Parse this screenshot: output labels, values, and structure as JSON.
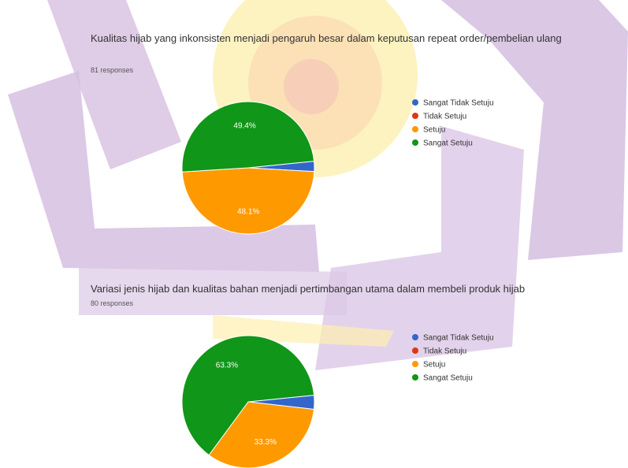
{
  "chart_data": [
    {
      "type": "pie",
      "title": "Kualitas hijab yang inkonsisten menjadi pengaruh besar dalam keputusan repeat order/pembelian ulang",
      "subtitle": "81 responses",
      "categories": [
        "Sangat Tidak Setuju",
        "Tidak Setuju",
        "Setuju",
        "Sangat Setuju"
      ],
      "values": [
        2.5,
        0,
        48.1,
        49.4
      ],
      "value_labels": [
        null,
        null,
        "48.1%",
        "49.4%"
      ],
      "colors": [
        "#3366cc",
        "#dc3912",
        "#ff9900",
        "#109618"
      ],
      "legend": "right"
    },
    {
      "type": "pie",
      "title": "Variasi jenis hijab dan kualitas bahan menjadi pertimbangan utama dalam membeli produk hijab",
      "subtitle": "80 responses",
      "categories": [
        "Sangat Tidak Setuju",
        "Tidak Setuju",
        "Setuju",
        "Sangat Setuju"
      ],
      "values": [
        3.4,
        0,
        33.3,
        63.3
      ],
      "value_labels": [
        null,
        null,
        "33.3%",
        "63.3%"
      ],
      "colors": [
        "#3366cc",
        "#dc3912",
        "#ff9900",
        "#109618"
      ],
      "legend": "right"
    }
  ]
}
